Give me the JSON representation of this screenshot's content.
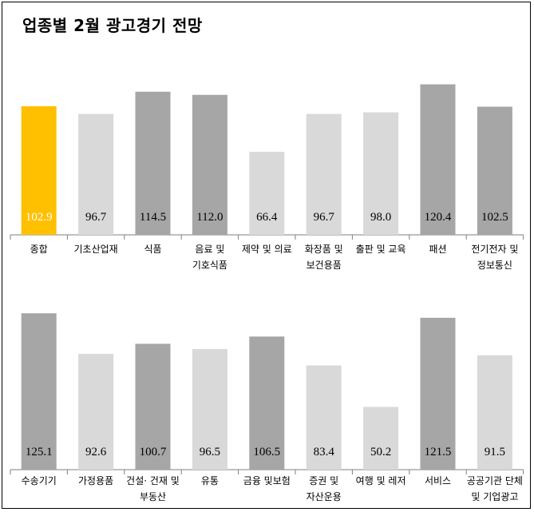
{
  "title": "업종별 2월 광고경기 전망",
  "colors": {
    "highlight": "#FFC000",
    "dark": "#A6A6A6",
    "light": "#D9D9D9"
  },
  "chart_data": [
    {
      "type": "bar",
      "categories": [
        [
          "종합"
        ],
        [
          "기초산업재"
        ],
        [
          "식품"
        ],
        [
          "음료 및",
          "기호식품"
        ],
        [
          "제약 및 의료"
        ],
        [
          "화장품 및",
          "보건용품"
        ],
        [
          "출판 및 교육"
        ],
        [
          "패션"
        ],
        [
          "전기전자 및",
          "정보통신"
        ]
      ],
      "values": [
        102.9,
        96.7,
        114.5,
        112.0,
        66.4,
        96.7,
        98.0,
        120.4,
        102.5
      ],
      "labels": [
        "102.9",
        "96.7",
        "114.5",
        "112.0",
        "66.4",
        "96.7",
        "98.0",
        "120.4",
        "102.5"
      ],
      "bar_colors": [
        "highlight",
        "light",
        "dark",
        "dark",
        "light",
        "light",
        "light",
        "dark",
        "dark"
      ]
    },
    {
      "type": "bar",
      "categories": [
        [
          "수송기기"
        ],
        [
          "가정용품"
        ],
        [
          "건설· 건재 및",
          "부동산"
        ],
        [
          "유통"
        ],
        [
          "금융 및보험"
        ],
        [
          "증권 및",
          "자산운용"
        ],
        [
          "여행 및 레저"
        ],
        [
          "서비스"
        ],
        [
          "공공기관 단체",
          "및 기업광고"
        ]
      ],
      "values": [
        125.1,
        92.6,
        100.7,
        96.5,
        106.5,
        83.4,
        50.2,
        121.5,
        91.5
      ],
      "labels": [
        "125.1",
        "92.6",
        "100.7",
        "96.5",
        "106.5",
        "83.4",
        "50.2",
        "121.5",
        "91.5"
      ],
      "bar_colors": [
        "dark",
        "light",
        "dark",
        "light",
        "dark",
        "light",
        "light",
        "dark",
        "light"
      ]
    }
  ]
}
